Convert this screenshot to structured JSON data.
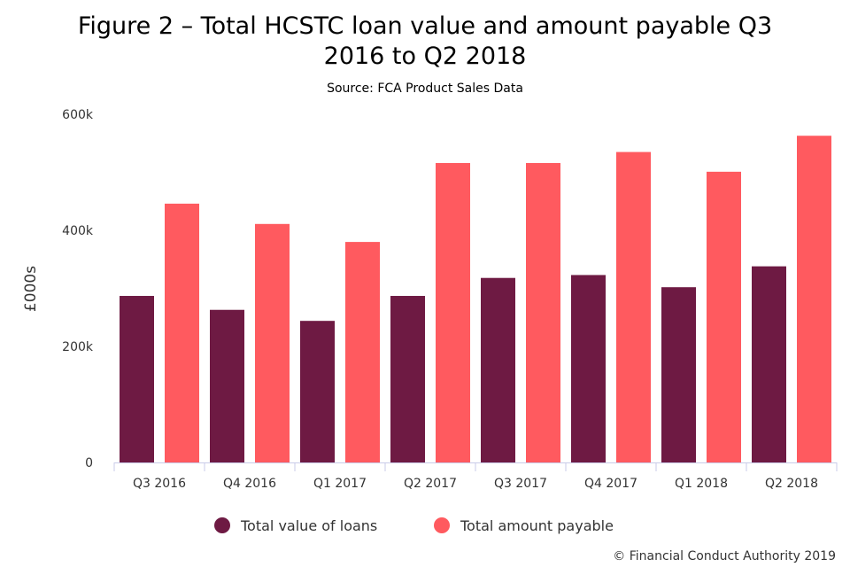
{
  "chart_data": {
    "type": "bar",
    "title_line1": "Figure 2 – Total HCSTC loan value and amount payable Q3",
    "title_line2": "2016 to Q2 2018",
    "subtitle": "Source: FCA Product Sales Data",
    "ylabel": "£000s",
    "xlabel": "",
    "categories": [
      "Q3 2016",
      "Q4 2016",
      "Q1 2017",
      "Q2 2017",
      "Q3 2017",
      "Q4 2017",
      "Q1 2018",
      "Q2 2018"
    ],
    "series": [
      {
        "name": "Total value of loans",
        "color": "#6e1a43",
        "values": [
          287,
          263,
          244,
          287,
          318,
          323,
          302,
          338
        ]
      },
      {
        "name": "Total amount payable",
        "color": "#ff5a5f",
        "values": [
          446,
          411,
          380,
          516,
          516,
          535,
          501,
          563
        ]
      }
    ],
    "ylim": [
      0,
      600
    ],
    "yticks": [
      {
        "value": 0,
        "label": "0"
      },
      {
        "value": 200,
        "label": "200k"
      },
      {
        "value": 400,
        "label": "400k"
      },
      {
        "value": 600,
        "label": "600k"
      }
    ],
    "grid": false,
    "legend_position": "bottom"
  },
  "credit": "© Financial Conduct Authority 2019"
}
